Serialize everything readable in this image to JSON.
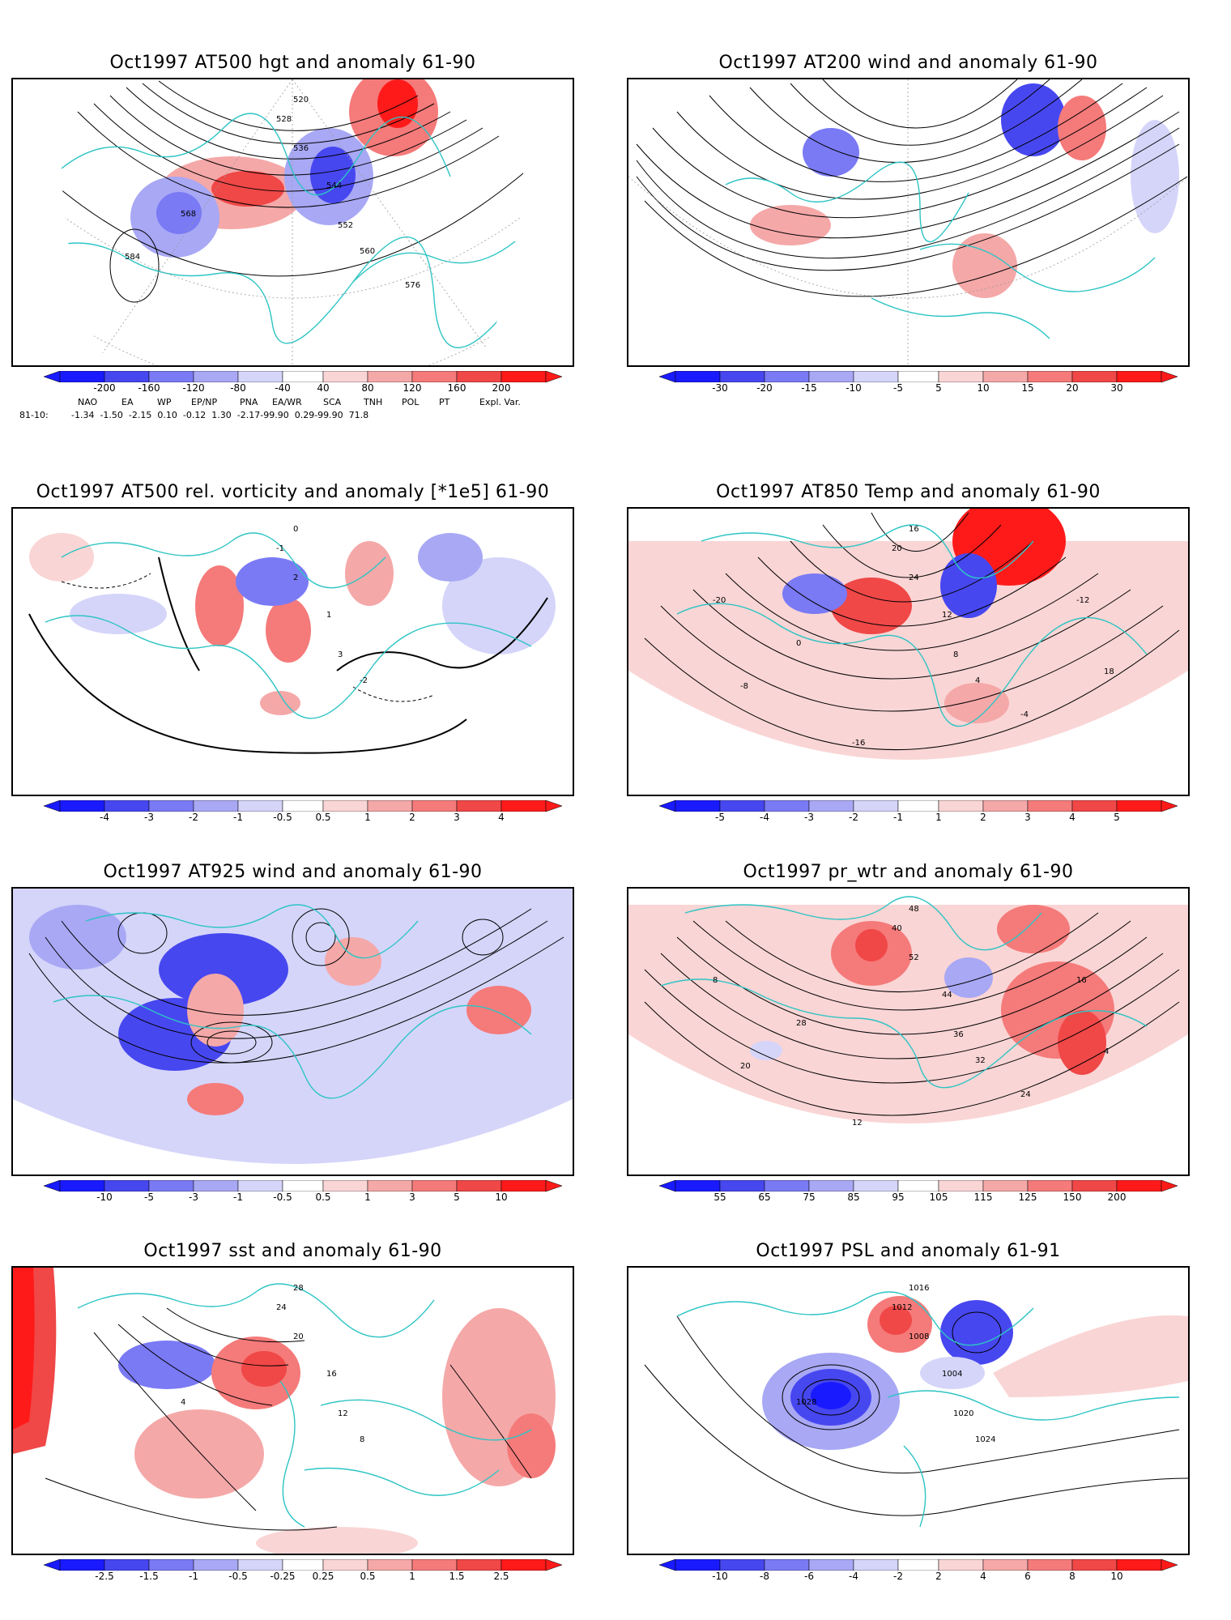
{
  "panels": [
    {
      "title": "Oct1997 AT500 hgt and anomaly 61-90",
      "colorbar": [
        "-200",
        "-160",
        "-120",
        "-80",
        "-40",
        "40",
        "80",
        "120",
        "160",
        "200"
      ],
      "contour_labels": [
        "520",
        "528",
        "536",
        "544",
        "552",
        "560",
        "568",
        "576",
        "584"
      ],
      "indices": {
        "headers": [
          "NAO",
          "EA",
          "WP",
          "EP/NP",
          "PNA",
          "EA/WR",
          "SCA",
          "TNH",
          "POL",
          "PT",
          "Expl. Var."
        ],
        "row_label": "81-10:",
        "values": "-1.34  -1.50  -2.15  0.10  -0.12  1.30  -2.17-99.90  0.29-99.90  71.8"
      }
    },
    {
      "title": "Oct1997 AT200 wind and anomaly 61-90",
      "colorbar": [
        "-30",
        "-20",
        "-15",
        "-10",
        "-5",
        "5",
        "10",
        "15",
        "20",
        "30"
      ],
      "contour_labels": []
    },
    {
      "title": "Oct1997 AT500 rel. vorticity and anomaly [*1e5] 61-90",
      "colorbar": [
        "-4",
        "-3",
        "-2",
        "-1",
        "-0.5",
        "0.5",
        "1",
        "2",
        "3",
        "4"
      ],
      "contour_labels": [
        "0",
        "-1",
        "2",
        "1",
        "3",
        "-2"
      ]
    },
    {
      "title": "Oct1997 AT850 Temp and anomaly 61-90",
      "colorbar": [
        "-5",
        "-4",
        "-3",
        "-2",
        "-1",
        "1",
        "2",
        "3",
        "4",
        "5"
      ],
      "contour_labels": [
        "16",
        "20",
        "24",
        "12",
        "8",
        "4",
        "0",
        "-4",
        "-8",
        "-12",
        "-16",
        "-20",
        "18"
      ]
    },
    {
      "title": "Oct1997 AT925 wind and anomaly 61-90",
      "colorbar": [
        "-10",
        "-5",
        "-3",
        "-1",
        "-0.5",
        "0.5",
        "1",
        "3",
        "5",
        "10"
      ],
      "contour_labels": []
    },
    {
      "title": "Oct1997 pr_wtr and anomaly 61-90",
      "colorbar": [
        "55",
        "65",
        "75",
        "85",
        "95",
        "105",
        "115",
        "125",
        "150",
        "200"
      ],
      "contour_labels": [
        "48",
        "40",
        "52",
        "44",
        "36",
        "32",
        "28",
        "24",
        "20",
        "16",
        "12",
        "8",
        "4"
      ]
    },
    {
      "title": "Oct1997 sst and anomaly 61-90",
      "colorbar": [
        "-2.5",
        "-1.5",
        "-1",
        "-0.5",
        "-0.25",
        "0.25",
        "0.5",
        "1",
        "1.5",
        "2.5"
      ],
      "contour_labels": [
        "28",
        "24",
        "20",
        "16",
        "12",
        "8",
        "4"
      ]
    },
    {
      "title": "Oct1997 PSL and anomaly 61-91",
      "colorbar": [
        "-10",
        "-8",
        "-6",
        "-4",
        "-2",
        "2",
        "4",
        "6",
        "8",
        "10"
      ],
      "contour_labels": [
        "1016",
        "1012",
        "1008",
        "1004",
        "1020",
        "1024",
        "1028"
      ]
    }
  ],
  "colors": {
    "negative": [
      "#1a1aff",
      "#4747f0",
      "#7a7af5",
      "#a8a8f5",
      "#d5d5fa"
    ],
    "positive": [
      "#fad5d5",
      "#f5a8a8",
      "#f57a7a",
      "#f04747",
      "#ff1a1a"
    ],
    "coast": "#2ec4c4",
    "grid": "#9a9a9a"
  }
}
